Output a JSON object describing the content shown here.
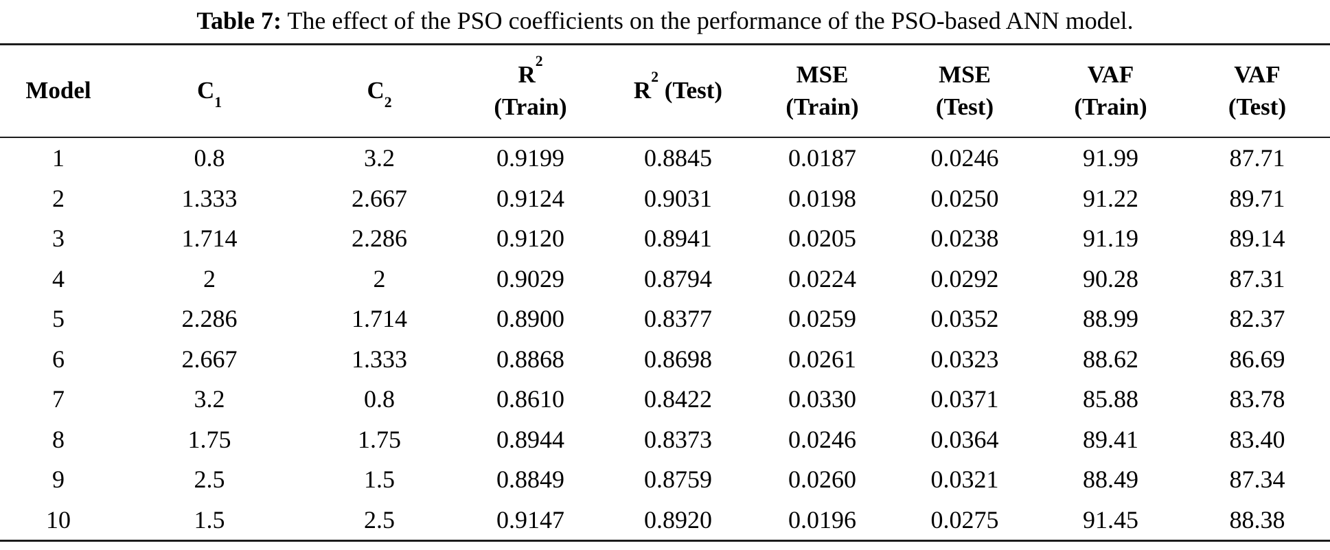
{
  "colors": {
    "background": "#ffffff",
    "text": "#000000",
    "rule": "#1c1c1c"
  },
  "caption": {
    "label": "Table 7:",
    "text": " The effect of the PSO coefficients on the performance of the PSO-based ANN model."
  },
  "table": {
    "headers": {
      "model": "Model",
      "c1": {
        "base": "C",
        "sub": "1"
      },
      "c2": {
        "base": "C",
        "sub": "2"
      },
      "r2_train": {
        "base": "R",
        "sup": "2",
        "line2": "(Train)"
      },
      "r2_test": {
        "base": "R",
        "sup": "2",
        "rest": " (Test)"
      },
      "mse_train": {
        "line1": "MSE",
        "line2": "(Train)"
      },
      "mse_test": {
        "line1": "MSE",
        "line2": "(Test)"
      },
      "vaf_train": {
        "line1": "VAF",
        "line2": "(Train)"
      },
      "vaf_test": {
        "line1": "VAF",
        "line2": "(Test)"
      }
    },
    "rows": [
      [
        "1",
        "0.8",
        "3.2",
        "0.9199",
        "0.8845",
        "0.0187",
        "0.0246",
        "91.99",
        "87.71"
      ],
      [
        "2",
        "1.333",
        "2.667",
        "0.9124",
        "0.9031",
        "0.0198",
        "0.0250",
        "91.22",
        "89.71"
      ],
      [
        "3",
        "1.714",
        "2.286",
        "0.9120",
        "0.8941",
        "0.0205",
        "0.0238",
        "91.19",
        "89.14"
      ],
      [
        "4",
        "2",
        "2",
        "0.9029",
        "0.8794",
        "0.0224",
        "0.0292",
        "90.28",
        "87.31"
      ],
      [
        "5",
        "2.286",
        "1.714",
        "0.8900",
        "0.8377",
        "0.0259",
        "0.0352",
        "88.99",
        "82.37"
      ],
      [
        "6",
        "2.667",
        "1.333",
        "0.8868",
        "0.8698",
        "0.0261",
        "0.0323",
        "88.62",
        "86.69"
      ],
      [
        "7",
        "3.2",
        "0.8",
        "0.8610",
        "0.8422",
        "0.0330",
        "0.0371",
        "85.88",
        "83.78"
      ],
      [
        "8",
        "1.75",
        "1.75",
        "0.8944",
        "0.8373",
        "0.0246",
        "0.0364",
        "89.41",
        "83.40"
      ],
      [
        "9",
        "2.5",
        "1.5",
        "0.8849",
        "0.8759",
        "0.0260",
        "0.0321",
        "88.49",
        "87.34"
      ],
      [
        "10",
        "1.5",
        "2.5",
        "0.9147",
        "0.8920",
        "0.0196",
        "0.0275",
        "91.45",
        "88.38"
      ]
    ]
  }
}
